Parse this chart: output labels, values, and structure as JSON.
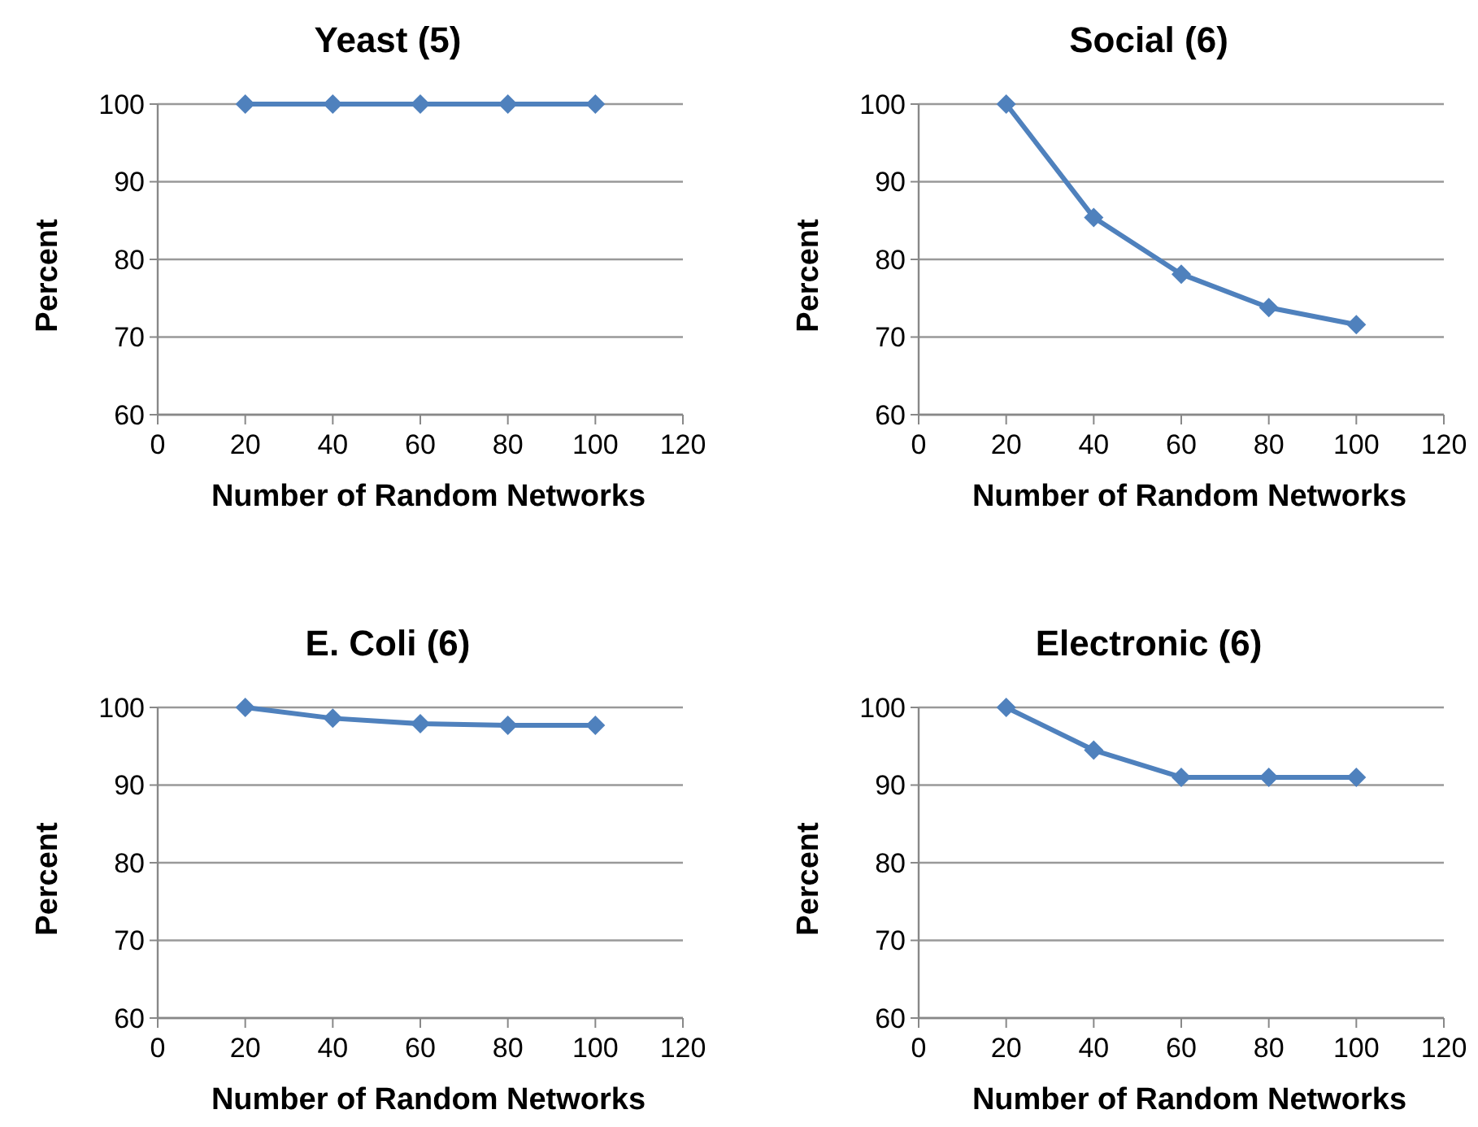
{
  "chart_data": [
    {
      "type": "line",
      "title": "Yeast (5)",
      "xlabel": "Number of Random Networks",
      "ylabel": "Percent",
      "x": [
        20,
        40,
        60,
        80,
        100
      ],
      "xlim": [
        0,
        120
      ],
      "xticks": [
        0,
        20,
        40,
        60,
        80,
        100,
        120
      ],
      "ylim": [
        60,
        100
      ],
      "yticks": [
        60,
        70,
        80,
        90,
        100
      ],
      "grid": "y",
      "marker": "diamond",
      "line_style": "solid",
      "series": [
        {
          "color": "#4f81bd",
          "values": [
            100,
            100,
            100,
            100,
            100
          ]
        }
      ]
    },
    {
      "type": "line",
      "title": "Social (6)",
      "xlabel": "Number of Random Networks",
      "ylabel": "Percent",
      "x": [
        20,
        40,
        60,
        80,
        100
      ],
      "xlim": [
        0,
        120
      ],
      "xticks": [
        0,
        20,
        40,
        60,
        80,
        100,
        120
      ],
      "ylim": [
        60,
        100
      ],
      "yticks": [
        60,
        70,
        80,
        90,
        100
      ],
      "grid": "y",
      "marker": "diamond",
      "line_style": "solid",
      "series": [
        {
          "color": "#4f81bd",
          "values": [
            100,
            85.4,
            78.1,
            73.8,
            71.6
          ]
        }
      ]
    },
    {
      "type": "line",
      "title": "E. Coli (6)",
      "xlabel": "Number of Random Networks",
      "ylabel": "Percent",
      "x": [
        20,
        40,
        60,
        80,
        100
      ],
      "xlim": [
        0,
        120
      ],
      "xticks": [
        0,
        20,
        40,
        60,
        80,
        100,
        120
      ],
      "ylim": [
        60,
        100
      ],
      "yticks": [
        60,
        70,
        80,
        90,
        100
      ],
      "grid": "y",
      "marker": "diamond",
      "line_style": "solid",
      "series": [
        {
          "color": "#4f81bd",
          "values": [
            100,
            98.6,
            97.9,
            97.7,
            97.7
          ]
        }
      ]
    },
    {
      "type": "line",
      "title": "Electronic (6)",
      "xlabel": "Number of Random Networks",
      "ylabel": "Percent",
      "x": [
        20,
        40,
        60,
        80,
        100
      ],
      "xlim": [
        0,
        120
      ],
      "xticks": [
        0,
        20,
        40,
        60,
        80,
        100,
        120
      ],
      "ylim": [
        60,
        100
      ],
      "yticks": [
        60,
        70,
        80,
        90,
        100
      ],
      "grid": "y",
      "marker": "diamond",
      "line_style": "solid",
      "series": [
        {
          "color": "#4f81bd",
          "values": [
            100,
            94.5,
            91.0,
            91.0,
            91.0
          ]
        }
      ]
    }
  ]
}
